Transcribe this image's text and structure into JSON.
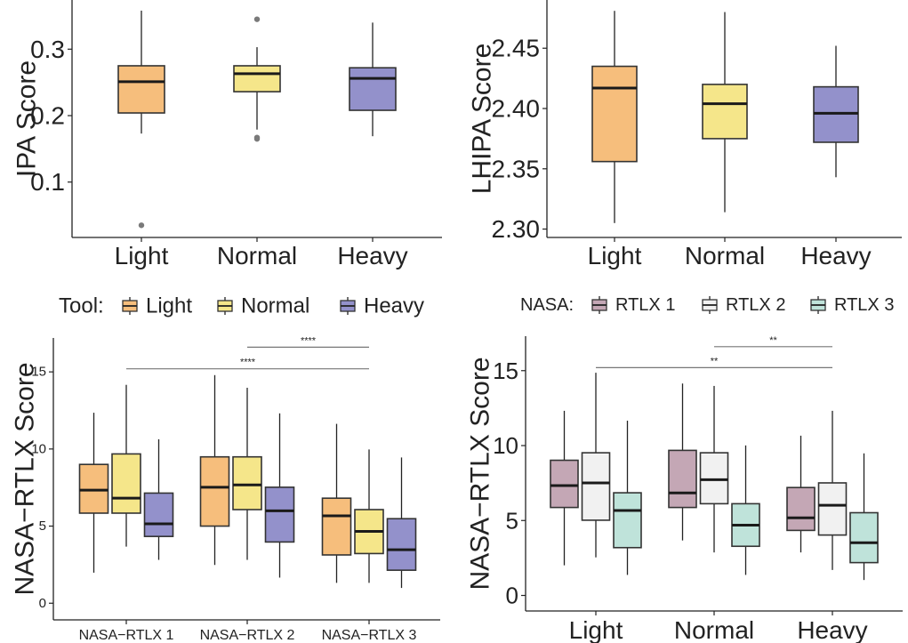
{
  "colors": {
    "Light": "#F6BE7C",
    "Normal": "#F5E68A",
    "Heavy": "#9391CB",
    "RTLX 1": "#C4A7B5",
    "RTLX 2": "#F1F1F1",
    "RTLX 3": "#BFE3DA"
  },
  "legends": {
    "tool": {
      "title": "Tool:",
      "items": [
        "Light",
        "Normal",
        "Heavy"
      ]
    },
    "nasa": {
      "title": "NASA:",
      "items": [
        "RTLX 1",
        "RTLX 2",
        "RTLX 3"
      ]
    }
  },
  "chart_data": [
    {
      "type": "box",
      "id": "ipa",
      "title": "",
      "xlabel": "",
      "ylabel": "IPA Score",
      "categories": [
        "Light",
        "Normal",
        "Heavy"
      ],
      "yticks": [
        0.1,
        0.2,
        0.3
      ],
      "ytick_labels": [
        "0.1",
        "0.2",
        "0.3"
      ],
      "ylim": [
        0.022,
        0.374
      ],
      "grid": false,
      "boxes": [
        {
          "category": "Light",
          "group": "Light",
          "whisker_low": 0.173,
          "q1": 0.204,
          "median": 0.251,
          "q3": 0.275,
          "whisker_high": 0.358,
          "outliers": [
            0.035
          ]
        },
        {
          "category": "Normal",
          "group": "Normal",
          "whisker_low": 0.179,
          "q1": 0.236,
          "median": 0.263,
          "q3": 0.275,
          "whisker_high": 0.303,
          "outliers": [
            0.345,
            0.167,
            0.165
          ]
        },
        {
          "category": "Heavy",
          "group": "Heavy",
          "whisker_low": 0.169,
          "q1": 0.208,
          "median": 0.256,
          "q3": 0.272,
          "whisker_high": 0.34,
          "outliers": []
        }
      ]
    },
    {
      "type": "box",
      "id": "lhipa",
      "title": "",
      "xlabel": "",
      "ylabel": "LHIPA Score",
      "categories": [
        "Light",
        "Normal",
        "Heavy"
      ],
      "yticks": [
        2.3,
        2.35,
        2.4,
        2.45
      ],
      "ytick_labels": [
        "2.30",
        "2.35",
        "2.40",
        "2.45"
      ],
      "ylim": [
        2.296,
        2.49
      ],
      "grid": false,
      "boxes": [
        {
          "category": "Light",
          "group": "Light",
          "whisker_low": 2.305,
          "q1": 2.356,
          "median": 2.417,
          "q3": 2.435,
          "whisker_high": 2.481,
          "outliers": []
        },
        {
          "category": "Normal",
          "group": "Normal",
          "whisker_low": 2.314,
          "q1": 2.375,
          "median": 2.404,
          "q3": 2.42,
          "whisker_high": 2.48,
          "outliers": []
        },
        {
          "category": "Heavy",
          "group": "Heavy",
          "whisker_low": 2.343,
          "q1": 2.372,
          "median": 2.396,
          "q3": 2.418,
          "whisker_high": 2.452,
          "outliers": []
        }
      ]
    },
    {
      "type": "box",
      "id": "rtlx-by-nasa",
      "title": "",
      "xlabel": "",
      "ylabel": "NASA−RTLX Score",
      "categories": [
        "NASA−RTLX 1",
        "NASA−RTLX 2",
        "NASA−RTLX 3"
      ],
      "groups": [
        "Light",
        "Normal",
        "Heavy"
      ],
      "legend": "tool",
      "legend_position": "top",
      "yticks": [
        0,
        5,
        10,
        15
      ],
      "ytick_labels": [
        "0",
        "5",
        "10",
        "15"
      ],
      "ylim": [
        -0.85,
        17.2
      ],
      "grid": false,
      "boxes": [
        {
          "category": 0,
          "group": "Light",
          "whisker_low": 1.98,
          "q1": 5.84,
          "median": 7.33,
          "q3": 9.0,
          "whisker_high": 12.35,
          "outliers": []
        },
        {
          "category": 0,
          "group": "Normal",
          "whisker_low": 3.67,
          "q1": 5.84,
          "median": 6.81,
          "q3": 9.68,
          "whisker_high": 14.16,
          "outliers": []
        },
        {
          "category": 0,
          "group": "Heavy",
          "whisker_low": 2.81,
          "q1": 4.33,
          "median": 5.15,
          "q3": 7.14,
          "whisker_high": 10.63,
          "outliers": []
        },
        {
          "category": 1,
          "group": "Light",
          "whisker_low": 2.48,
          "q1": 5.0,
          "median": 7.52,
          "q3": 9.49,
          "whisker_high": 14.79,
          "outliers": []
        },
        {
          "category": 1,
          "group": "Normal",
          "whisker_low": 2.81,
          "q1": 6.07,
          "median": 7.67,
          "q3": 9.49,
          "whisker_high": 13.97,
          "outliers": []
        },
        {
          "category": 1,
          "group": "Heavy",
          "whisker_low": 1.66,
          "q1": 3.97,
          "median": 5.99,
          "q3": 7.52,
          "whisker_high": 12.31,
          "outliers": []
        },
        {
          "category": 2,
          "group": "Light",
          "whisker_low": 1.32,
          "q1": 3.13,
          "median": 5.67,
          "q3": 6.81,
          "whisker_high": 11.63,
          "outliers": []
        },
        {
          "category": 2,
          "group": "Normal",
          "whisker_low": 1.32,
          "q1": 3.22,
          "median": 4.66,
          "q3": 6.07,
          "whisker_high": 9.97,
          "outliers": []
        },
        {
          "category": 2,
          "group": "Heavy",
          "whisker_low": 0.99,
          "q1": 2.14,
          "median": 3.47,
          "q3": 5.48,
          "whisker_high": 9.45,
          "outliers": []
        }
      ],
      "annotations": [
        {
          "from": 1,
          "to": 2,
          "y": 16.6,
          "label": "****"
        },
        {
          "from": 0,
          "to": 2,
          "y": 15.2,
          "label": "****"
        }
      ]
    },
    {
      "type": "box",
      "id": "rtlx-by-tool",
      "title": "",
      "xlabel": "",
      "ylabel": "NASA−RTLX Score",
      "categories": [
        "Light",
        "Normal",
        "Heavy"
      ],
      "groups": [
        "RTLX 1",
        "RTLX 2",
        "RTLX 3"
      ],
      "legend": "nasa",
      "legend_position": "top",
      "yticks": [
        0,
        5,
        10,
        15
      ],
      "ytick_labels": [
        "0",
        "5",
        "10",
        "15"
      ],
      "ylim": [
        -0.8,
        17.3
      ],
      "grid": false,
      "boxes": [
        {
          "category": 0,
          "group": "RTLX 1",
          "whisker_low": 2.01,
          "q1": 5.87,
          "median": 7.33,
          "q3": 9.02,
          "whisker_high": 12.32,
          "outliers": []
        },
        {
          "category": 0,
          "group": "RTLX 2",
          "whisker_low": 2.54,
          "q1": 5.02,
          "median": 7.51,
          "q3": 9.52,
          "whisker_high": 14.86,
          "outliers": []
        },
        {
          "category": 0,
          "group": "RTLX 3",
          "whisker_low": 1.37,
          "q1": 3.19,
          "median": 5.67,
          "q3": 6.85,
          "whisker_high": 11.66,
          "outliers": []
        },
        {
          "category": 1,
          "group": "RTLX 1",
          "whisker_low": 3.67,
          "q1": 5.87,
          "median": 6.84,
          "q3": 9.68,
          "whisker_high": 14.14,
          "outliers": []
        },
        {
          "category": 1,
          "group": "RTLX 2",
          "whisker_low": 2.87,
          "q1": 6.12,
          "median": 7.72,
          "q3": 9.52,
          "whisker_high": 13.98,
          "outliers": []
        },
        {
          "category": 1,
          "group": "RTLX 3",
          "whisker_low": 1.37,
          "q1": 3.28,
          "median": 4.69,
          "q3": 6.12,
          "whisker_high": 10.01,
          "outliers": []
        },
        {
          "category": 2,
          "group": "RTLX 1",
          "whisker_low": 2.87,
          "q1": 4.34,
          "median": 5.18,
          "q3": 7.2,
          "whisker_high": 10.66,
          "outliers": []
        },
        {
          "category": 2,
          "group": "RTLX 2",
          "whisker_low": 1.7,
          "q1": 4.03,
          "median": 6.02,
          "q3": 7.51,
          "whisker_high": 12.32,
          "outliers": []
        },
        {
          "category": 2,
          "group": "RTLX 3",
          "whisker_low": 1.03,
          "q1": 2.19,
          "median": 3.52,
          "q3": 5.52,
          "whisker_high": 9.48,
          "outliers": []
        }
      ],
      "annotations": [
        {
          "from": 1,
          "to": 2,
          "y": 16.6,
          "label": "**"
        },
        {
          "from": 0,
          "to": 2,
          "y": 15.2,
          "label": "**"
        }
      ]
    }
  ]
}
